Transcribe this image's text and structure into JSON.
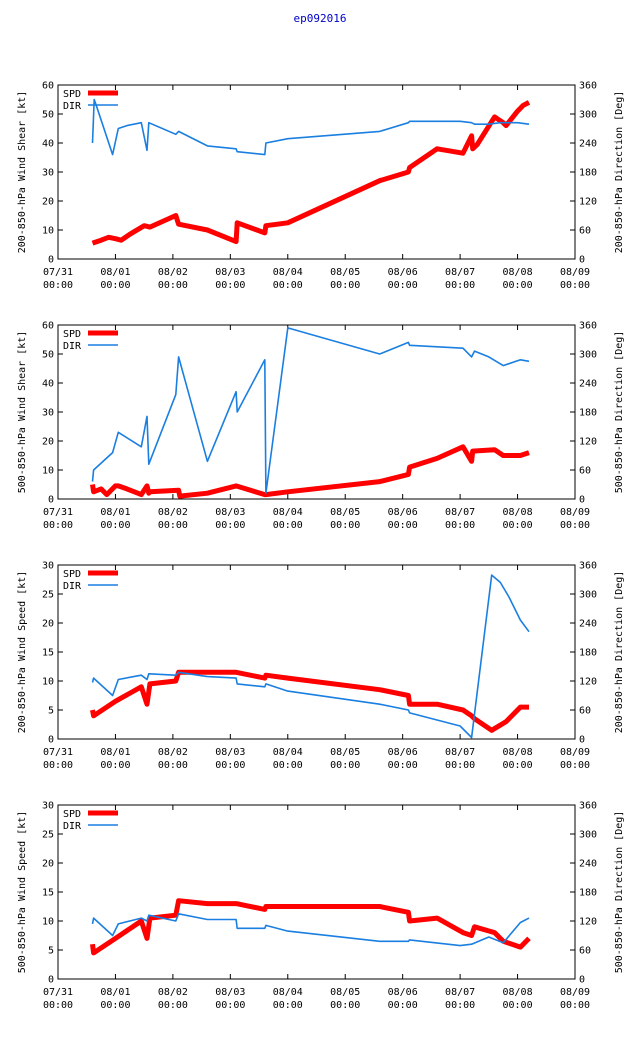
{
  "title": "ep092016",
  "colors": {
    "spd": "#ff0000",
    "dir": "#1a7fe0",
    "title": "#0000cc"
  },
  "legend": {
    "spd": "SPD",
    "dir": "DIR"
  },
  "x_ticks": [
    {
      "date": "07/31",
      "time": "00:00"
    },
    {
      "date": "08/01",
      "time": "00:00"
    },
    {
      "date": "08/02",
      "time": "00:00"
    },
    {
      "date": "08/03",
      "time": "00:00"
    },
    {
      "date": "08/04",
      "time": "00:00"
    },
    {
      "date": "08/05",
      "time": "00:00"
    },
    {
      "date": "08/06",
      "time": "00:00"
    },
    {
      "date": "08/07",
      "time": "00:00"
    },
    {
      "date": "08/08",
      "time": "00:00"
    },
    {
      "date": "08/09",
      "time": "00:00"
    }
  ],
  "chart_data": [
    {
      "type": "line",
      "ylabel": "200-850-hPa Wind Shear [kt]",
      "y2label": "200-850-hPa Direction [Deg]",
      "xlim": [
        0,
        9
      ],
      "ylim": [
        0,
        60
      ],
      "y2lim": [
        0,
        360
      ],
      "yticks": [
        0,
        10,
        20,
        30,
        40,
        50,
        60
      ],
      "y2ticks": [
        0,
        60,
        120,
        180,
        240,
        300,
        360
      ],
      "series": [
        {
          "name": "SPD",
          "axis": "left",
          "x": [
            0.6,
            0.75,
            0.88,
            1.0,
            1.1,
            1.25,
            1.5,
            1.6,
            2.05,
            2.1,
            2.6,
            3.1,
            3.12,
            3.6,
            3.62,
            4.0,
            5.6,
            6.1,
            6.12,
            6.6,
            7.05,
            7.2,
            7.22,
            7.3,
            7.6,
            7.75,
            7.8,
            8.0,
            8.1,
            8.2
          ],
          "y": [
            5.5,
            6.5,
            7.5,
            7,
            6.5,
            8.5,
            11.5,
            11,
            15,
            12,
            10,
            6,
            12.5,
            9,
            11.5,
            12.5,
            27,
            30,
            31.5,
            38,
            36.5,
            42.5,
            38,
            39.5,
            49,
            47,
            46,
            51,
            53,
            54
          ]
        },
        {
          "name": "DIR",
          "axis": "right",
          "x": [
            0.6,
            0.63,
            0.66,
            0.95,
            1.05,
            1.2,
            1.45,
            1.55,
            1.58,
            2.05,
            2.1,
            2.6,
            3.1,
            3.12,
            3.6,
            3.62,
            4.0,
            5.6,
            6.1,
            6.12,
            7.0,
            7.2,
            7.25,
            7.5,
            7.7,
            7.8,
            8.0,
            8.2
          ],
          "y": [
            240,
            330,
            320,
            216,
            270,
            276,
            282,
            225,
            282,
            258,
            264,
            234,
            228,
            222,
            216,
            240,
            249,
            264,
            282,
            285,
            285,
            282,
            279,
            279,
            282,
            282,
            282,
            279
          ]
        }
      ]
    },
    {
      "type": "line",
      "ylabel": "500-850-hPa Wind Shear [kt]",
      "y2label": "500-850-hPa Direction [Deg]",
      "xlim": [
        0,
        9
      ],
      "ylim": [
        0,
        60
      ],
      "y2lim": [
        0,
        360
      ],
      "yticks": [
        0,
        10,
        20,
        30,
        40,
        50,
        60
      ],
      "y2ticks": [
        0,
        60,
        120,
        180,
        240,
        300,
        360
      ],
      "series": [
        {
          "name": "SPD",
          "axis": "left",
          "x": [
            0.6,
            0.62,
            0.75,
            0.85,
            1.0,
            1.05,
            1.2,
            1.45,
            1.55,
            1.58,
            1.6,
            2.1,
            2.12,
            2.6,
            3.1,
            3.6,
            3.62,
            4.0,
            5.6,
            6.1,
            6.12,
            6.6,
            7.05,
            7.2,
            7.22,
            7.6,
            7.75,
            8.05,
            8.2
          ],
          "y": [
            5,
            2.5,
            3.5,
            1.5,
            4.5,
            4.5,
            3.5,
            1.5,
            4.5,
            2,
            2.5,
            3,
            1,
            2,
            4.5,
            1.5,
            1.5,
            2.5,
            6,
            8.5,
            11,
            14,
            18,
            13,
            16.5,
            17,
            15,
            15,
            16
          ]
        },
        {
          "name": "DIR",
          "axis": "right",
          "x": [
            0.6,
            0.62,
            0.95,
            1.05,
            1.45,
            1.55,
            1.58,
            2.05,
            2.1,
            2.6,
            3.1,
            3.12,
            3.6,
            3.62,
            4.0,
            5.6,
            6.1,
            6.12,
            7.05,
            7.2,
            7.25,
            7.5,
            7.75,
            8.05,
            8.2
          ],
          "y": [
            36,
            60,
            96,
            138,
            108,
            171,
            72,
            216,
            294,
            78,
            222,
            180,
            288,
            12,
            354,
            300,
            324,
            318,
            312,
            294,
            306,
            294,
            276,
            288,
            285
          ]
        }
      ]
    },
    {
      "type": "line",
      "ylabel": "200-850-hPa Wind Speed [kt]",
      "y2label": "200-850-hPa Direction [Deg]",
      "xlim": [
        0,
        9
      ],
      "ylim": [
        0,
        30
      ],
      "y2lim": [
        0,
        360
      ],
      "yticks": [
        0,
        5,
        10,
        15,
        20,
        25,
        30
      ],
      "y2ticks": [
        0,
        60,
        120,
        180,
        240,
        300,
        360
      ],
      "series": [
        {
          "name": "SPD",
          "axis": "left",
          "x": [
            0.6,
            0.62,
            1.0,
            1.45,
            1.55,
            1.6,
            2.05,
            2.1,
            2.6,
            3.1,
            3.6,
            3.62,
            4.0,
            5.6,
            6.1,
            6.12,
            6.6,
            7.05,
            7.2,
            7.25,
            7.55,
            7.8,
            8.05,
            8.2
          ],
          "y": [
            5,
            4,
            6.5,
            9,
            6,
            9.5,
            10,
            11.5,
            11.5,
            11.5,
            10.5,
            11,
            10.5,
            8.5,
            7.5,
            6,
            6,
            5,
            4,
            3.5,
            1.5,
            3,
            5.5,
            5.5
          ]
        },
        {
          "name": "DIR",
          "axis": "right",
          "x": [
            0.6,
            0.62,
            0.95,
            1.05,
            1.45,
            1.55,
            1.58,
            2.05,
            2.1,
            2.6,
            3.1,
            3.12,
            3.6,
            3.62,
            4.0,
            5.6,
            6.1,
            6.12,
            7.0,
            7.2,
            7.55,
            7.7,
            7.85,
            8.05,
            8.2
          ],
          "y": [
            117,
            126,
            90,
            123,
            132,
            123,
            135,
            132,
            138,
            129,
            126,
            114,
            108,
            114,
            99,
            72,
            60,
            54,
            27,
            3,
            339,
            324,
            294,
            246,
            222
          ]
        }
      ]
    },
    {
      "type": "line",
      "ylabel": "500-850-hPa Wind Speed [kt]",
      "y2label": "500-850-hPa Direction [Deg]",
      "xlim": [
        0,
        9
      ],
      "ylim": [
        0,
        30
      ],
      "y2lim": [
        0,
        360
      ],
      "yticks": [
        0,
        5,
        10,
        15,
        20,
        25,
        30
      ],
      "y2ticks": [
        0,
        60,
        120,
        180,
        240,
        300,
        360
      ],
      "series": [
        {
          "name": "SPD",
          "axis": "left",
          "x": [
            0.6,
            0.62,
            1.0,
            1.45,
            1.55,
            1.6,
            2.05,
            2.1,
            2.6,
            3.1,
            3.6,
            3.62,
            4.0,
            5.6,
            6.1,
            6.12,
            6.6,
            7.05,
            7.2,
            7.25,
            7.6,
            7.75,
            8.05,
            8.2
          ],
          "y": [
            6,
            4.5,
            7,
            10,
            7,
            10.5,
            11,
            13.5,
            13,
            13,
            12,
            12.5,
            12.5,
            12.5,
            11.5,
            10,
            10.5,
            8,
            7.5,
            9,
            8,
            6.5,
            5.5,
            7
          ]
        },
        {
          "name": "DIR",
          "axis": "right",
          "x": [
            0.6,
            0.62,
            0.95,
            1.05,
            1.45,
            1.55,
            1.58,
            2.05,
            2.1,
            2.6,
            3.1,
            3.12,
            3.6,
            3.62,
            4.0,
            5.6,
            6.1,
            6.12,
            7.0,
            7.2,
            7.5,
            7.75,
            8.05,
            8.2
          ],
          "y": [
            114,
            126,
            90,
            114,
            126,
            120,
            132,
            120,
            135,
            123,
            123,
            105,
            105,
            111,
            99,
            78,
            78,
            81,
            69,
            72,
            87,
            75,
            117,
            126
          ]
        }
      ]
    }
  ]
}
